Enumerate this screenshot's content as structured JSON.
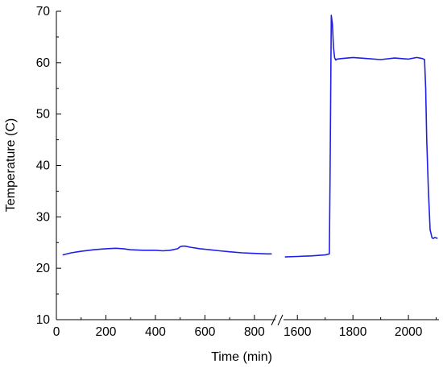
{
  "chart_data": {
    "type": "line",
    "xlabel": "Time (min)",
    "ylabel": "Temperature (C)",
    "ylim": [
      10,
      70
    ],
    "yticks": [
      10,
      20,
      30,
      40,
      50,
      60,
      70
    ],
    "x_axis_break": true,
    "x_segments": [
      {
        "range": [
          0,
          885
        ],
        "ticks": [
          0,
          200,
          400,
          600,
          800
        ]
      },
      {
        "range": [
          1550,
          2110
        ],
        "ticks": [
          1600,
          1800,
          2000
        ]
      }
    ],
    "grid": false,
    "line_color": "#1f1fe6",
    "series": [
      {
        "segments": [
          {
            "x": [
              25,
              60,
              100,
              150,
              200,
              240,
              270,
              300,
              350,
              400,
              430,
              460,
              490,
              500,
              510,
              520,
              540,
              580,
              620,
              660,
              700,
              750,
              800,
              850,
              870
            ],
            "y": [
              22.6,
              23.0,
              23.3,
              23.6,
              23.8,
              23.9,
              23.8,
              23.6,
              23.5,
              23.5,
              23.4,
              23.5,
              23.8,
              24.2,
              24.3,
              24.3,
              24.1,
              23.8,
              23.6,
              23.4,
              23.2,
              23.0,
              22.9,
              22.8,
              22.8
            ]
          },
          {
            "x": [
              1555,
              1600,
              1650,
              1700,
              1715,
              1718,
              1722,
              1726,
              1730,
              1734,
              1738,
              1742,
              1760,
              1800,
              1850,
              1900,
              1950,
              2000,
              2030,
              2050,
              2058,
              2062,
              2066,
              2072,
              2078,
              2085,
              2090,
              2095,
              2105
            ],
            "y": [
              22.2,
              22.3,
              22.4,
              22.6,
              22.8,
              40.0,
              69.2,
              67.5,
              63.0,
              61.0,
              60.5,
              60.7,
              60.8,
              61.0,
              60.8,
              60.6,
              60.9,
              60.7,
              61.0,
              60.8,
              60.6,
              55.0,
              45.0,
              35.0,
              27.5,
              25.9,
              25.8,
              26.0,
              25.8
            ]
          }
        ]
      }
    ]
  }
}
